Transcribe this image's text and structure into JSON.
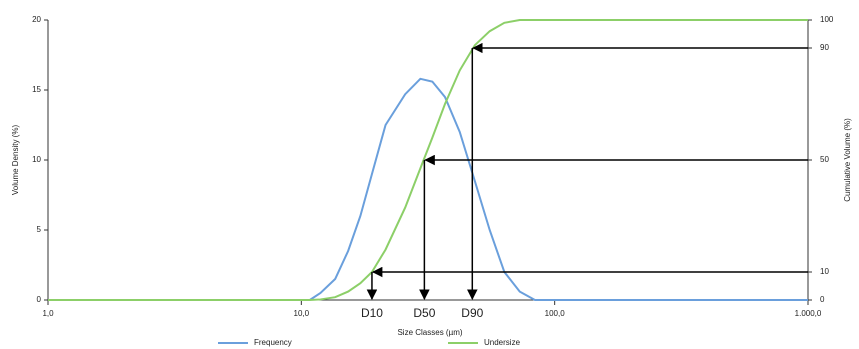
{
  "chart_data": {
    "type": "line",
    "xlabel": "Size Classes (µm)",
    "ylabel": "Volume Density (%)",
    "y2label": "Cumulative Volume (%)",
    "x": [
      1,
      10.8,
      11.9,
      13.6,
      15.3,
      17.1,
      19.0,
      21.5,
      25.7,
      29.5,
      32.9,
      36.9,
      42.2,
      48.4,
      55.4,
      63.3,
      72.8,
      83.6,
      1000
    ],
    "series": [
      {
        "name": "Frequency",
        "color": "#6a9fdc",
        "values": [
          0,
          0,
          0.5,
          1.5,
          3.5,
          6,
          9,
          12.5,
          14.7,
          15.8,
          15.6,
          14.5,
          12,
          8.5,
          5,
          2,
          0.6,
          0,
          0
        ]
      },
      {
        "name": "Undersize",
        "color": "#8ccf68",
        "axis": "y2",
        "values": [
          0,
          0,
          0.2,
          1,
          3,
          6,
          10,
          18,
          33,
          47,
          58,
          70,
          82,
          91,
          96,
          99,
          100,
          100,
          100
        ]
      }
    ],
    "xscale": "log",
    "xlim": [
      1,
      1000
    ],
    "xticks": [
      {
        "value": 1,
        "label": "1,0"
      },
      {
        "value": 10,
        "label": "10,0"
      },
      {
        "value": 100,
        "label": "100,0"
      },
      {
        "value": 1000,
        "label": "1.000,0"
      }
    ],
    "ylim": [
      0,
      20
    ],
    "yticks": [
      0,
      5,
      10,
      15,
      20
    ],
    "y2lim": [
      0,
      100
    ],
    "y2ticks": [
      0,
      10,
      50,
      90,
      100
    ],
    "markers": [
      {
        "label": "D10",
        "x": 19.0,
        "y2": 10
      },
      {
        "label": "D50",
        "x": 30.6,
        "y2": 50
      },
      {
        "label": "D90",
        "x": 47.3,
        "y2": 90
      }
    ],
    "legend": "bottom"
  }
}
